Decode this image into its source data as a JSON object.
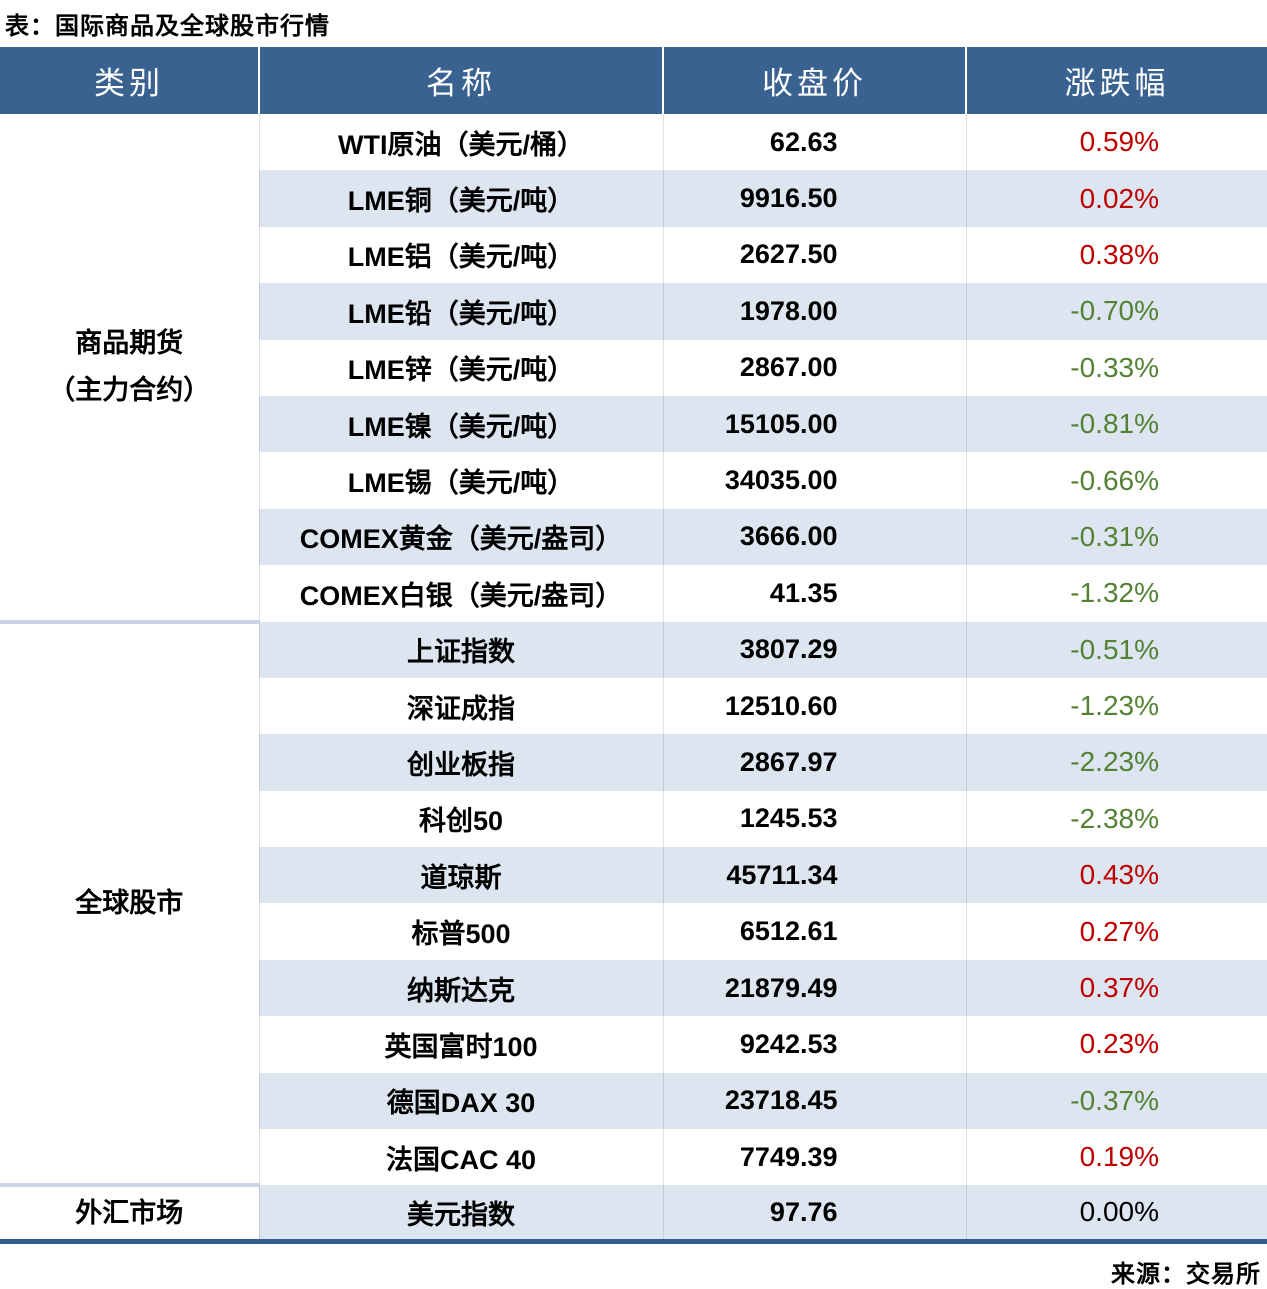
{
  "chart_data": {
    "type": "table",
    "title": "表：国际商品及全球股市行情",
    "columns": [
      "类别",
      "名称",
      "收盘价",
      "涨跌幅"
    ],
    "source_note": "来源：交易所",
    "groups": [
      {
        "category_lines": [
          "商品期货",
          "（主力合约）"
        ],
        "rows": [
          {
            "name": "WTI原油（美元/桶）",
            "close": "62.63",
            "change": "0.59%",
            "trend": "up"
          },
          {
            "name": "LME铜（美元/吨）",
            "close": "9916.50",
            "change": "0.02%",
            "trend": "up"
          },
          {
            "name": "LME铝（美元/吨）",
            "close": "2627.50",
            "change": "0.38%",
            "trend": "up"
          },
          {
            "name": "LME铅（美元/吨）",
            "close": "1978.00",
            "change": "-0.70%",
            "trend": "down"
          },
          {
            "name": "LME锌（美元/吨）",
            "close": "2867.00",
            "change": "-0.33%",
            "trend": "down"
          },
          {
            "name": "LME镍（美元/吨）",
            "close": "15105.00",
            "change": "-0.81%",
            "trend": "down"
          },
          {
            "name": "LME锡（美元/吨）",
            "close": "34035.00",
            "change": "-0.66%",
            "trend": "down"
          },
          {
            "name": "COMEX黄金（美元/盎司）",
            "close": "3666.00",
            "change": "-0.31%",
            "trend": "down"
          },
          {
            "name": "COMEX白银（美元/盎司）",
            "close": "41.35",
            "change": "-1.32%",
            "trend": "down"
          }
        ]
      },
      {
        "category_lines": [
          "全球股市"
        ],
        "rows": [
          {
            "name": "上证指数",
            "close": "3807.29",
            "change": "-0.51%",
            "trend": "down"
          },
          {
            "name": "深证成指",
            "close": "12510.60",
            "change": "-1.23%",
            "trend": "down"
          },
          {
            "name": "创业板指",
            "close": "2867.97",
            "change": "-2.23%",
            "trend": "down"
          },
          {
            "name": "科创50",
            "close": "1245.53",
            "change": "-2.38%",
            "trend": "down"
          },
          {
            "name": "道琼斯",
            "close": "45711.34",
            "change": "0.43%",
            "trend": "up"
          },
          {
            "name": "标普500",
            "close": "6512.61",
            "change": "0.27%",
            "trend": "up"
          },
          {
            "name": "纳斯达克",
            "close": "21879.49",
            "change": "0.37%",
            "trend": "up"
          },
          {
            "name": "英国富时100",
            "close": "9242.53",
            "change": "0.23%",
            "trend": "up"
          },
          {
            "name": "德国DAX 30",
            "close": "23718.45",
            "change": "-0.37%",
            "trend": "down"
          },
          {
            "name": "法国CAC 40",
            "close": "7749.39",
            "change": "0.19%",
            "trend": "up"
          }
        ]
      },
      {
        "category_lines": [
          "外汇市场"
        ],
        "rows": [
          {
            "name": "美元指数",
            "close": "97.76",
            "change": "0.00%",
            "trend": "flat"
          }
        ]
      }
    ]
  },
  "colors": {
    "header_bg": "#3A6291",
    "row_alt_bg": "#DCE5F0",
    "up_red": "#C00000",
    "down_green": "#548235",
    "flat_black": "#000000",
    "bottom_border": "#315E8E",
    "divider": "#C9D4E4"
  }
}
